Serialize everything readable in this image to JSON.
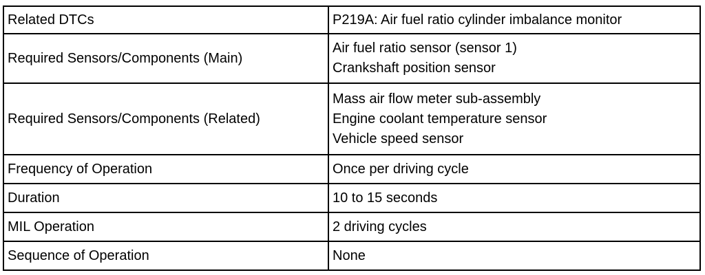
{
  "table": {
    "rows": [
      {
        "label": "Related DTCs",
        "values": [
          "P219A: Air fuel ratio cylinder imbalance monitor"
        ]
      },
      {
        "label": "Required Sensors/Components (Main)",
        "values": [
          "Air fuel ratio sensor (sensor 1)",
          "Crankshaft position sensor"
        ]
      },
      {
        "label": "Required Sensors/Components (Related)",
        "values": [
          "Mass air flow meter sub-assembly",
          "Engine coolant temperature sensor",
          "Vehicle speed sensor"
        ]
      },
      {
        "label": "Frequency of Operation",
        "values": [
          "Once per driving cycle"
        ]
      },
      {
        "label": "Duration",
        "values": [
          "10 to 15 seconds"
        ]
      },
      {
        "label": "MIL Operation",
        "values": [
          "2 driving cycles"
        ]
      },
      {
        "label": "Sequence of Operation",
        "values": [
          "None"
        ]
      }
    ]
  }
}
